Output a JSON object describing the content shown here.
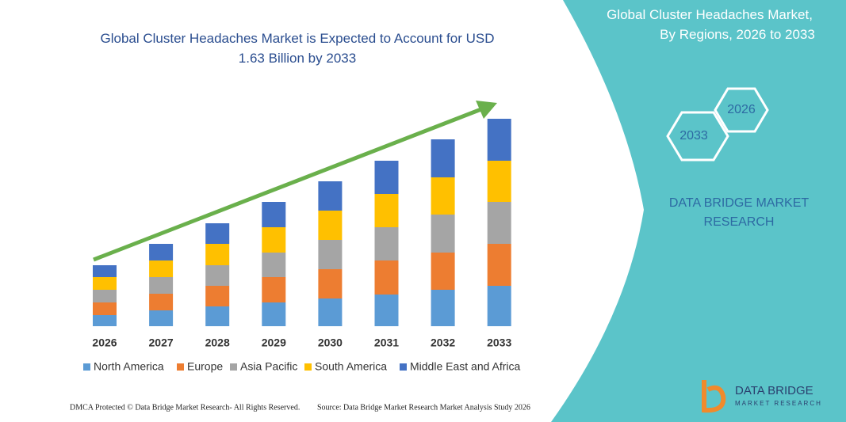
{
  "chart_data": {
    "type": "stacked-bar",
    "title": "Global Cluster Headaches Market is Expected to Account for USD 1.63 Billion by 2033",
    "categories": [
      "2026",
      "2027",
      "2028",
      "2029",
      "2030",
      "2031",
      "2032",
      "2033"
    ],
    "series": [
      {
        "name": "North America",
        "color": "#5b9bd5",
        "values": [
          14,
          20,
          25,
          30,
          35,
          40,
          46,
          51
        ]
      },
      {
        "name": "Europe",
        "color": "#ed7d31",
        "values": [
          16,
          21,
          26,
          32,
          37,
          43,
          47,
          53
        ]
      },
      {
        "name": "Asia Pacific",
        "color": "#a5a5a5",
        "values": [
          16,
          21,
          26,
          31,
          37,
          42,
          48,
          53
        ]
      },
      {
        "name": "South America",
        "color": "#ffc000",
        "values": [
          16,
          21,
          27,
          32,
          37,
          42,
          47,
          52
        ]
      },
      {
        "name": "Middle East and Africa",
        "color": "#4472c4",
        "values": [
          15,
          21,
          26,
          32,
          37,
          42,
          48,
          53
        ]
      }
    ]
  },
  "panel": {
    "title": "Global Cluster Headaches Market, By Regions, 2026 to 2033",
    "hex_start": "2026",
    "hex_end": "2033",
    "brand": "DATA BRIDGE MARKET RESEARCH"
  },
  "footer": {
    "left": "DMCA Protected © Data Bridge Market Research- All Rights Reserved.",
    "right": "Source: Data Bridge Market Research Market Analysis Study 2026"
  },
  "logo": {
    "name": "DATA BRIDGE",
    "tagline": "MARKET RESEARCH"
  }
}
